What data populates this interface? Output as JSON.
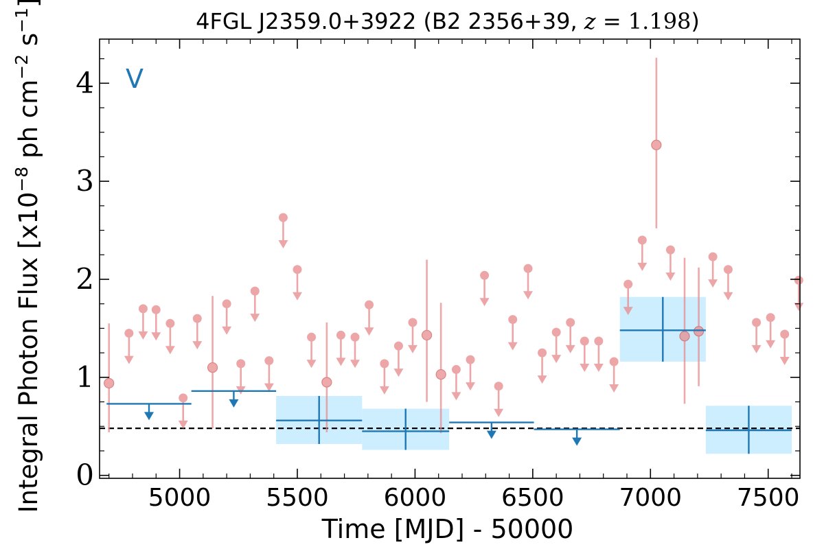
{
  "chart_data": {
    "type": "scatter",
    "title": {
      "prefix": "4FGL J2359.0+3922 (B2 2356+39, ",
      "math_var": "z",
      "math_rest": " = 1.198",
      "suffix": ")"
    },
    "xlabel": "Time [MJD] - 50000",
    "ylabel": {
      "base": "Integral Photon Flux [x10",
      "exp1": "−8",
      "mid": " ph cm",
      "exp2": "−2",
      "mid2": " s",
      "exp3": "−1",
      "end": "]"
    },
    "annotation": "V",
    "xlim": [
      4660,
      7635
    ],
    "ylim": [
      -0.03,
      4.45
    ],
    "xticks": [
      5000,
      5500,
      6000,
      6500,
      7000,
      7500
    ],
    "yticks": [
      0,
      1,
      2,
      3,
      4
    ],
    "baseline": 0.48,
    "colors": {
      "fine": "#e8898b",
      "coarse": "#1f77b4",
      "band": "#cdeeff",
      "baseline": "#000000"
    },
    "fine_detections": [
      {
        "x": 4700,
        "y": 0.94,
        "lo": 0.44,
        "hi": 1.55
      },
      {
        "x": 5140,
        "y": 1.1,
        "lo": 0.48,
        "hi": 1.83
      },
      {
        "x": 5625,
        "y": 0.95,
        "lo": 0.44,
        "hi": 1.56
      },
      {
        "x": 6050,
        "y": 1.43,
        "lo": 0.75,
        "hi": 2.2
      },
      {
        "x": 6110,
        "y": 1.03,
        "lo": 0.43,
        "hi": 1.76
      },
      {
        "x": 7025,
        "y": 3.37,
        "lo": 2.52,
        "hi": 4.26
      },
      {
        "x": 7145,
        "y": 1.42,
        "lo": 0.73,
        "hi": 2.22
      },
      {
        "x": 7205,
        "y": 1.47,
        "lo": 0.91,
        "hi": 2.12
      }
    ],
    "fine_upper_limits": [
      {
        "x": 4785,
        "y": 1.45
      },
      {
        "x": 4845,
        "y": 1.7
      },
      {
        "x": 4900,
        "y": 1.69
      },
      {
        "x": 4960,
        "y": 1.55
      },
      {
        "x": 5015,
        "y": 0.79
      },
      {
        "x": 5075,
        "y": 1.6
      },
      {
        "x": 5200,
        "y": 1.75
      },
      {
        "x": 5260,
        "y": 1.14
      },
      {
        "x": 5320,
        "y": 1.88
      },
      {
        "x": 5380,
        "y": 1.17
      },
      {
        "x": 5440,
        "y": 2.63
      },
      {
        "x": 5500,
        "y": 2.1
      },
      {
        "x": 5560,
        "y": 1.41
      },
      {
        "x": 5685,
        "y": 1.43
      },
      {
        "x": 5745,
        "y": 1.41
      },
      {
        "x": 5805,
        "y": 1.74
      },
      {
        "x": 5870,
        "y": 1.14
      },
      {
        "x": 5930,
        "y": 1.32
      },
      {
        "x": 5990,
        "y": 1.56
      },
      {
        "x": 6175,
        "y": 1.08
      },
      {
        "x": 6235,
        "y": 1.18
      },
      {
        "x": 6295,
        "y": 2.04
      },
      {
        "x": 6355,
        "y": 0.91
      },
      {
        "x": 6415,
        "y": 1.59
      },
      {
        "x": 6480,
        "y": 2.11
      },
      {
        "x": 6540,
        "y": 1.25
      },
      {
        "x": 6600,
        "y": 1.46
      },
      {
        "x": 6660,
        "y": 1.56
      },
      {
        "x": 6720,
        "y": 1.37
      },
      {
        "x": 6780,
        "y": 1.37
      },
      {
        "x": 6845,
        "y": 1.16
      },
      {
        "x": 6905,
        "y": 1.95
      },
      {
        "x": 6965,
        "y": 2.4
      },
      {
        "x": 7085,
        "y": 2.3
      },
      {
        "x": 7265,
        "y": 2.23
      },
      {
        "x": 7330,
        "y": 2.1
      },
      {
        "x": 7450,
        "y": 1.56
      },
      {
        "x": 7510,
        "y": 1.61
      },
      {
        "x": 7570,
        "y": 1.44
      },
      {
        "x": 7630,
        "y": 1.99
      }
    ],
    "coarse_upper_limits": [
      {
        "x0": 4690,
        "x1": 5050,
        "y": 0.73
      },
      {
        "x0": 5050,
        "x1": 5410,
        "y": 0.86
      },
      {
        "x0": 6145,
        "x1": 6505,
        "y": 0.54
      },
      {
        "x0": 6505,
        "x1": 6870,
        "y": 0.47
      }
    ],
    "coarse_detections": [
      {
        "x0": 5410,
        "x1": 5775,
        "y": 0.56,
        "lo": 0.32,
        "hi": 0.81
      },
      {
        "x0": 5775,
        "x1": 6145,
        "y": 0.45,
        "lo": 0.26,
        "hi": 0.68
      },
      {
        "x0": 6870,
        "x1": 7235,
        "y": 1.48,
        "lo": 1.16,
        "hi": 1.82
      },
      {
        "x0": 7235,
        "x1": 7600,
        "y": 0.46,
        "lo": 0.22,
        "hi": 0.71
      }
    ]
  }
}
